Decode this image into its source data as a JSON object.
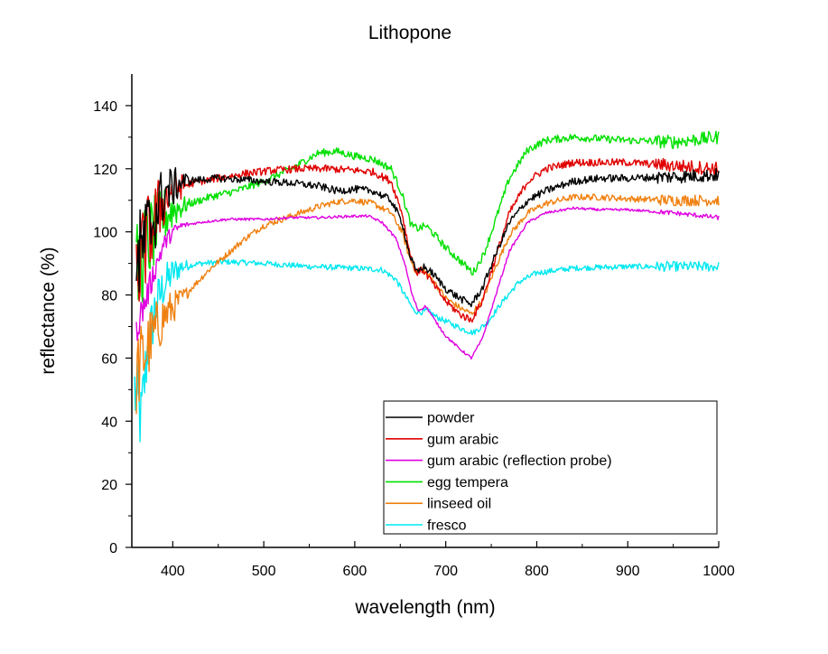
{
  "chart_data": {
    "type": "line",
    "title": "Lithopone",
    "xlabel": "wavelength (nm)",
    "ylabel": "reflectance (%)",
    "xlim": [
      355,
      1000
    ],
    "ylim": [
      0,
      150
    ],
    "xticks": [
      400,
      500,
      600,
      700,
      800,
      900,
      1000
    ],
    "yticks": [
      0,
      20,
      40,
      60,
      80,
      100,
      120,
      140
    ],
    "grid": false,
    "legend_position": "bottom-right",
    "series": [
      {
        "name": "powder",
        "color": "#000000",
        "noise": 1.2,
        "points": [
          [
            360,
            88
          ],
          [
            370,
            98
          ],
          [
            380,
            105
          ],
          [
            390,
            112
          ],
          [
            400,
            114
          ],
          [
            410,
            116
          ],
          [
            430,
            116.5
          ],
          [
            450,
            117
          ],
          [
            480,
            116.5
          ],
          [
            500,
            116
          ],
          [
            530,
            115.5
          ],
          [
            560,
            114.5
          ],
          [
            580,
            113
          ],
          [
            600,
            113.5
          ],
          [
            620,
            113
          ],
          [
            640,
            110
          ],
          [
            652,
            103
          ],
          [
            660,
            93
          ],
          [
            668,
            87
          ],
          [
            675,
            89
          ],
          [
            685,
            87
          ],
          [
            700,
            82
          ],
          [
            715,
            79
          ],
          [
            728,
            77
          ],
          [
            740,
            82
          ],
          [
            755,
            93
          ],
          [
            770,
            103
          ],
          [
            790,
            110
          ],
          [
            810,
            113
          ],
          [
            840,
            116
          ],
          [
            870,
            117
          ],
          [
            900,
            117
          ],
          [
            950,
            117.5
          ],
          [
            1000,
            118
          ]
        ]
      },
      {
        "name": "gum arabic",
        "color": "#e00000",
        "noise": 1.2,
        "points": [
          [
            360,
            85
          ],
          [
            370,
            96
          ],
          [
            380,
            104
          ],
          [
            390,
            110
          ],
          [
            400,
            113
          ],
          [
            410,
            114.5
          ],
          [
            430,
            116
          ],
          [
            450,
            117
          ],
          [
            480,
            118.5
          ],
          [
            510,
            119.5
          ],
          [
            540,
            120
          ],
          [
            570,
            120
          ],
          [
            600,
            119.5
          ],
          [
            620,
            119
          ],
          [
            640,
            116
          ],
          [
            652,
            106
          ],
          [
            660,
            94
          ],
          [
            668,
            87
          ],
          [
            675,
            88
          ],
          [
            685,
            84
          ],
          [
            700,
            78
          ],
          [
            715,
            74
          ],
          [
            728,
            72
          ],
          [
            740,
            78
          ],
          [
            755,
            92
          ],
          [
            770,
            106
          ],
          [
            790,
            116
          ],
          [
            810,
            120
          ],
          [
            840,
            122
          ],
          [
            870,
            122
          ],
          [
            900,
            122
          ],
          [
            950,
            121
          ],
          [
            1000,
            120
          ]
        ]
      },
      {
        "name": "gum arabic (reflection probe)",
        "color": "#e000e0",
        "noise": 0.4,
        "points": [
          [
            360,
            70
          ],
          [
            370,
            78
          ],
          [
            380,
            88
          ],
          [
            390,
            96
          ],
          [
            400,
            100
          ],
          [
            410,
            102
          ],
          [
            430,
            103
          ],
          [
            460,
            104
          ],
          [
            500,
            104
          ],
          [
            530,
            104.5
          ],
          [
            560,
            104.5
          ],
          [
            600,
            105
          ],
          [
            615,
            105
          ],
          [
            630,
            103
          ],
          [
            645,
            98
          ],
          [
            655,
            90
          ],
          [
            663,
            80
          ],
          [
            670,
            75
          ],
          [
            678,
            76.5
          ],
          [
            688,
            72
          ],
          [
            700,
            67
          ],
          [
            715,
            63
          ],
          [
            728,
            60
          ],
          [
            740,
            66
          ],
          [
            755,
            80
          ],
          [
            770,
            94
          ],
          [
            790,
            103
          ],
          [
            810,
            106
          ],
          [
            840,
            107.5
          ],
          [
            870,
            107
          ],
          [
            900,
            107
          ],
          [
            950,
            106
          ],
          [
            1000,
            104.5
          ]
        ]
      },
      {
        "name": "egg tempera",
        "color": "#00e000",
        "noise": 1.2,
        "points": [
          [
            360,
            85
          ],
          [
            370,
            95
          ],
          [
            380,
            100
          ],
          [
            390,
            105
          ],
          [
            400,
            107
          ],
          [
            420,
            109
          ],
          [
            440,
            111
          ],
          [
            470,
            113
          ],
          [
            500,
            116
          ],
          [
            530,
            120
          ],
          [
            560,
            125
          ],
          [
            580,
            125.5
          ],
          [
            600,
            124
          ],
          [
            620,
            123
          ],
          [
            640,
            120
          ],
          [
            652,
            112
          ],
          [
            662,
            102
          ],
          [
            670,
            101
          ],
          [
            678,
            102
          ],
          [
            688,
            99
          ],
          [
            700,
            95
          ],
          [
            715,
            91
          ],
          [
            730,
            87
          ],
          [
            742,
            93
          ],
          [
            755,
            104
          ],
          [
            770,
            117
          ],
          [
            790,
            126
          ],
          [
            810,
            129
          ],
          [
            840,
            130
          ],
          [
            870,
            129.5
          ],
          [
            900,
            129
          ],
          [
            950,
            128.5
          ],
          [
            1000,
            130
          ]
        ]
      },
      {
        "name": "linseed oil",
        "color": "#f08010",
        "noise": 1.0,
        "points": [
          [
            360,
            55
          ],
          [
            370,
            62
          ],
          [
            380,
            68
          ],
          [
            390,
            73
          ],
          [
            400,
            76
          ],
          [
            420,
            82
          ],
          [
            440,
            88
          ],
          [
            460,
            93
          ],
          [
            480,
            98
          ],
          [
            500,
            102
          ],
          [
            530,
            105
          ],
          [
            560,
            108
          ],
          [
            580,
            109.5
          ],
          [
            600,
            110
          ],
          [
            620,
            109
          ],
          [
            640,
            106
          ],
          [
            652,
            100
          ],
          [
            660,
            92
          ],
          [
            668,
            87
          ],
          [
            675,
            88
          ],
          [
            685,
            85
          ],
          [
            700,
            79
          ],
          [
            715,
            76
          ],
          [
            728,
            74
          ],
          [
            740,
            78
          ],
          [
            755,
            89
          ],
          [
            770,
            99
          ],
          [
            790,
            106
          ],
          [
            810,
            109
          ],
          [
            840,
            111
          ],
          [
            870,
            111
          ],
          [
            900,
            110.5
          ],
          [
            950,
            110
          ],
          [
            1000,
            110
          ]
        ]
      },
      {
        "name": "fresco",
        "color": "#00e8f0",
        "noise": 0.9,
        "points": [
          [
            358,
            50
          ],
          [
            365,
            40
          ],
          [
            372,
            62
          ],
          [
            380,
            75
          ],
          [
            390,
            83
          ],
          [
            400,
            87
          ],
          [
            410,
            89
          ],
          [
            430,
            90
          ],
          [
            460,
            90.5
          ],
          [
            500,
            90
          ],
          [
            550,
            89
          ],
          [
            600,
            88.5
          ],
          [
            630,
            88
          ],
          [
            645,
            85
          ],
          [
            655,
            80
          ],
          [
            665,
            75
          ],
          [
            672,
            74.5
          ],
          [
            680,
            75
          ],
          [
            690,
            73
          ],
          [
            705,
            71
          ],
          [
            720,
            69
          ],
          [
            730,
            68
          ],
          [
            745,
            71
          ],
          [
            760,
            77
          ],
          [
            780,
            84
          ],
          [
            800,
            87
          ],
          [
            840,
            88.5
          ],
          [
            900,
            89
          ],
          [
            950,
            89
          ],
          [
            1000,
            89
          ]
        ]
      }
    ]
  }
}
